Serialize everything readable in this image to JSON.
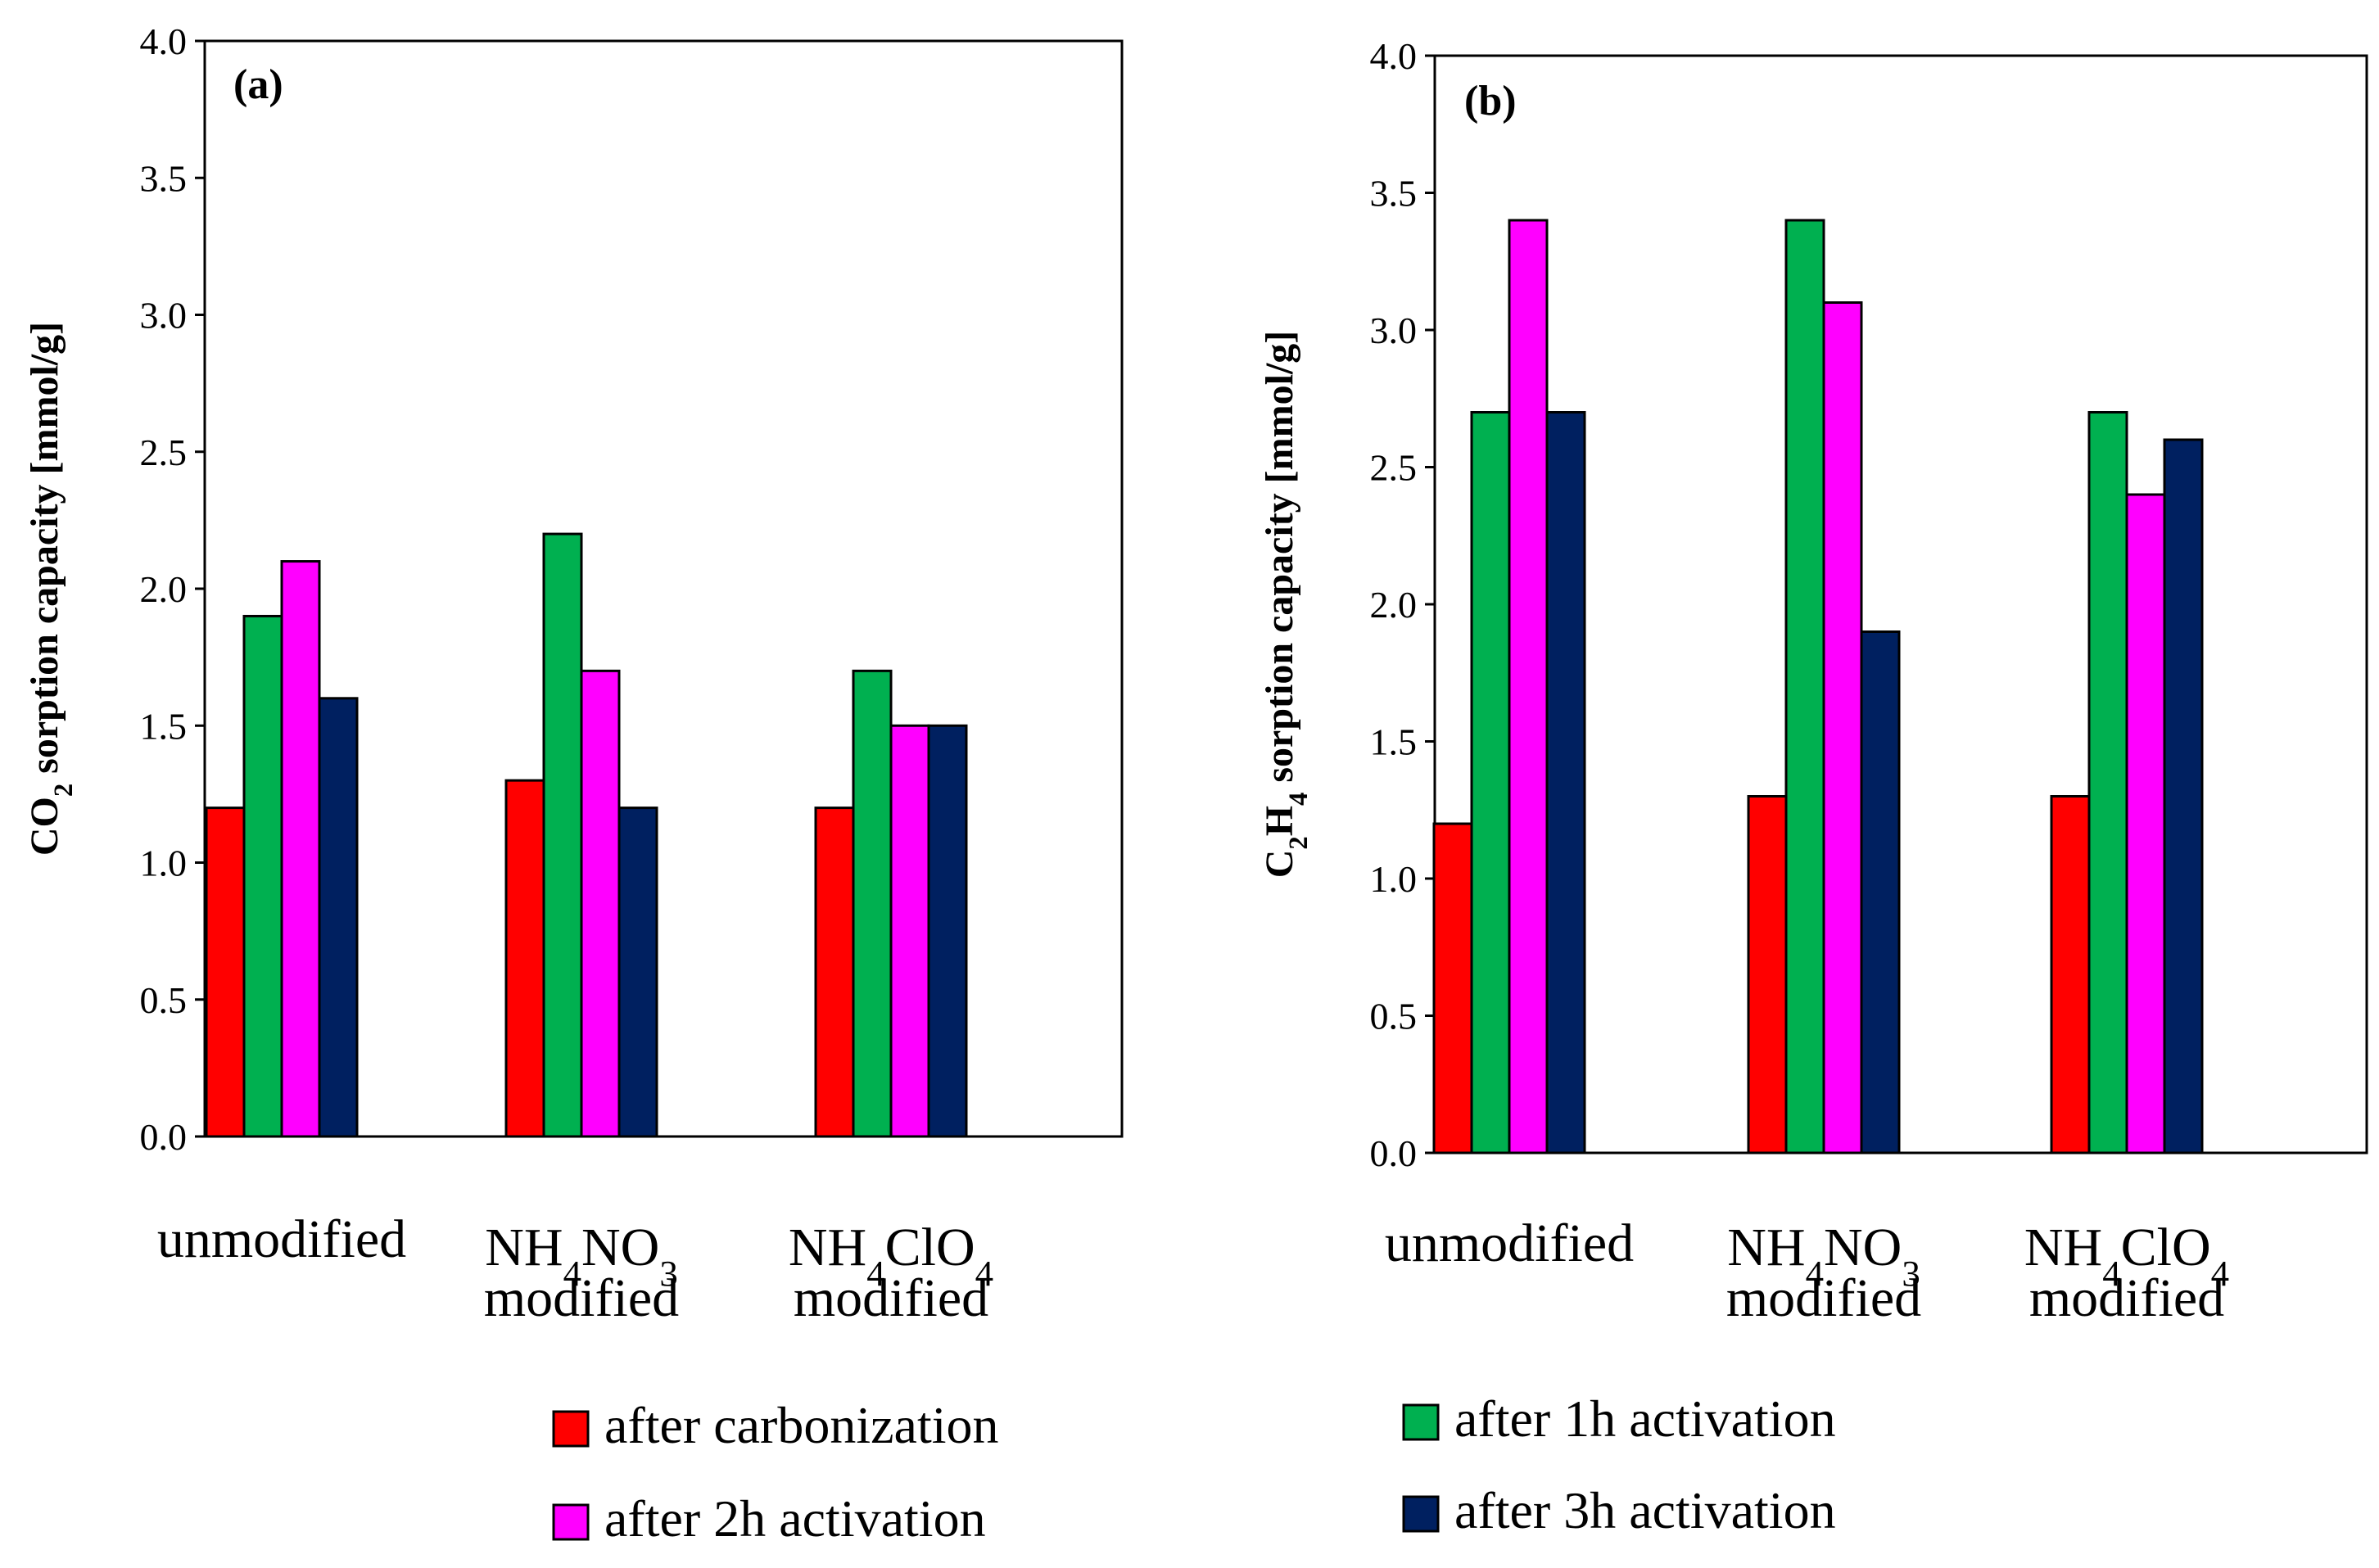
{
  "chart_data": [
    {
      "type": "bar",
      "panel_label": "(a)",
      "ylabel": {
        "pre": "CO",
        "sub": "2",
        "post": " sorption capacity [mmol/g]"
      },
      "ylim": [
        0,
        4.0
      ],
      "yticks": [
        "0.0",
        "0.5",
        "1.0",
        "1.5",
        "2.0",
        "2.5",
        "3.0",
        "3.5",
        "4.0"
      ],
      "categories": [
        {
          "lines": [
            [
              {
                "t": "unmodified"
              }
            ]
          ]
        },
        {
          "lines": [
            [
              {
                "t": "NH"
              },
              {
                "t": "4",
                "sub": true
              },
              {
                "t": "NO"
              },
              {
                "t": "3",
                "sub": true
              }
            ],
            [
              {
                "t": "modified"
              }
            ]
          ]
        },
        {
          "lines": [
            [
              {
                "t": "NH"
              },
              {
                "t": "4",
                "sub": true
              },
              {
                "t": "ClO"
              },
              {
                "t": "4",
                "sub": true
              }
            ],
            [
              {
                "t": "modified"
              }
            ]
          ]
        }
      ],
      "series": [
        {
          "name": "after carbonization",
          "values": [
            1.2,
            1.3,
            1.2
          ]
        },
        {
          "name": "after 1h activation",
          "values": [
            1.9,
            2.2,
            1.7
          ]
        },
        {
          "name": "after 2h activation",
          "values": [
            2.1,
            1.7,
            1.5
          ]
        },
        {
          "name": "after 3h activation",
          "values": [
            1.6,
            1.2,
            1.5
          ]
        }
      ]
    },
    {
      "type": "bar",
      "panel_label": "(b)",
      "ylabel": {
        "pre": "C",
        "sub": "2",
        "mid": "H",
        "sub2": "4",
        "post": " sorption capacity [mmol/g]"
      },
      "ylim": [
        0,
        4.0
      ],
      "yticks": [
        "0.0",
        "0.5",
        "1.0",
        "1.5",
        "2.0",
        "2.5",
        "3.0",
        "3.5",
        "4.0"
      ],
      "categories": [
        {
          "lines": [
            [
              {
                "t": "unmodified"
              }
            ]
          ]
        },
        {
          "lines": [
            [
              {
                "t": "NH"
              },
              {
                "t": "4",
                "sub": true
              },
              {
                "t": "NO"
              },
              {
                "t": "3",
                "sub": true
              }
            ],
            [
              {
                "t": "modified"
              }
            ]
          ]
        },
        {
          "lines": [
            [
              {
                "t": "NH"
              },
              {
                "t": "4",
                "sub": true
              },
              {
                "t": "ClO"
              },
              {
                "t": "4",
                "sub": true
              }
            ],
            [
              {
                "t": "modified"
              }
            ]
          ]
        }
      ],
      "series": [
        {
          "name": "after carbonization",
          "values": [
            1.2,
            1.3,
            1.3
          ]
        },
        {
          "name": "after 1h activation",
          "values": [
            2.7,
            3.4,
            2.7
          ]
        },
        {
          "name": "after 2h activation",
          "values": [
            3.4,
            3.1,
            2.4
          ]
        },
        {
          "name": "after 3h activation",
          "values": [
            2.7,
            1.9,
            2.6
          ]
        }
      ]
    }
  ],
  "legend": {
    "position": "bottom",
    "items": [
      {
        "label": "after carbonization",
        "color": "#ff0000"
      },
      {
        "label": "after 1h activation",
        "color": "#00b050"
      },
      {
        "label": "after 2h activation",
        "color": "#ff00ff"
      },
      {
        "label": "after 3h activation",
        "color": "#002060"
      }
    ]
  }
}
